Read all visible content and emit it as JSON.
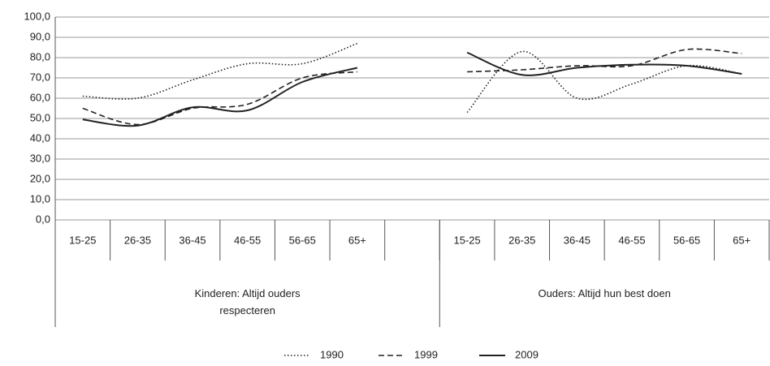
{
  "chart_data": {
    "type": "line",
    "categories": [
      "15-25",
      "26-35",
      "36-45",
      "46-55",
      "56-65",
      "65+",
      null,
      "15-25",
      "26-35",
      "36-45",
      "46-55",
      "56-65",
      "65+"
    ],
    "groups": [
      "Kinderen: Altijd ouders respecteren",
      "Ouders: Altijd hun best doen"
    ],
    "series": [
      {
        "name": "1990",
        "color": "#222222",
        "style": "dotted",
        "values": [
          61,
          60,
          69,
          77,
          77,
          87,
          null,
          53,
          83,
          60,
          67,
          76,
          72
        ]
      },
      {
        "name": "1999",
        "color": "#222222",
        "style": "dashed",
        "values": [
          55,
          47,
          55,
          57,
          70,
          73,
          null,
          73,
          74,
          76,
          76,
          84,
          82
        ]
      },
      {
        "name": "2009",
        "color": "#222222",
        "style": "solid",
        "values": [
          49.5,
          46.5,
          55.5,
          54,
          68,
          75,
          null,
          82.5,
          71.5,
          75,
          76.5,
          76,
          72
        ]
      }
    ],
    "ylim": [
      0,
      100
    ],
    "yticks": [
      {
        "value": 0,
        "label": "0,0"
      },
      {
        "value": 10,
        "label": "10,0"
      },
      {
        "value": 20,
        "label": "20,0"
      },
      {
        "value": 30,
        "label": "30,0"
      },
      {
        "value": 40,
        "label": "40,0"
      },
      {
        "value": 50,
        "label": "50,0"
      },
      {
        "value": 60,
        "label": "60,0"
      },
      {
        "value": 70,
        "label": "70,0"
      },
      {
        "value": 80,
        "label": "80,0"
      },
      {
        "value": 90,
        "label": "90,0"
      },
      {
        "value": 100,
        "label": "100,0"
      }
    ],
    "grid": true,
    "legend": "bottom"
  }
}
